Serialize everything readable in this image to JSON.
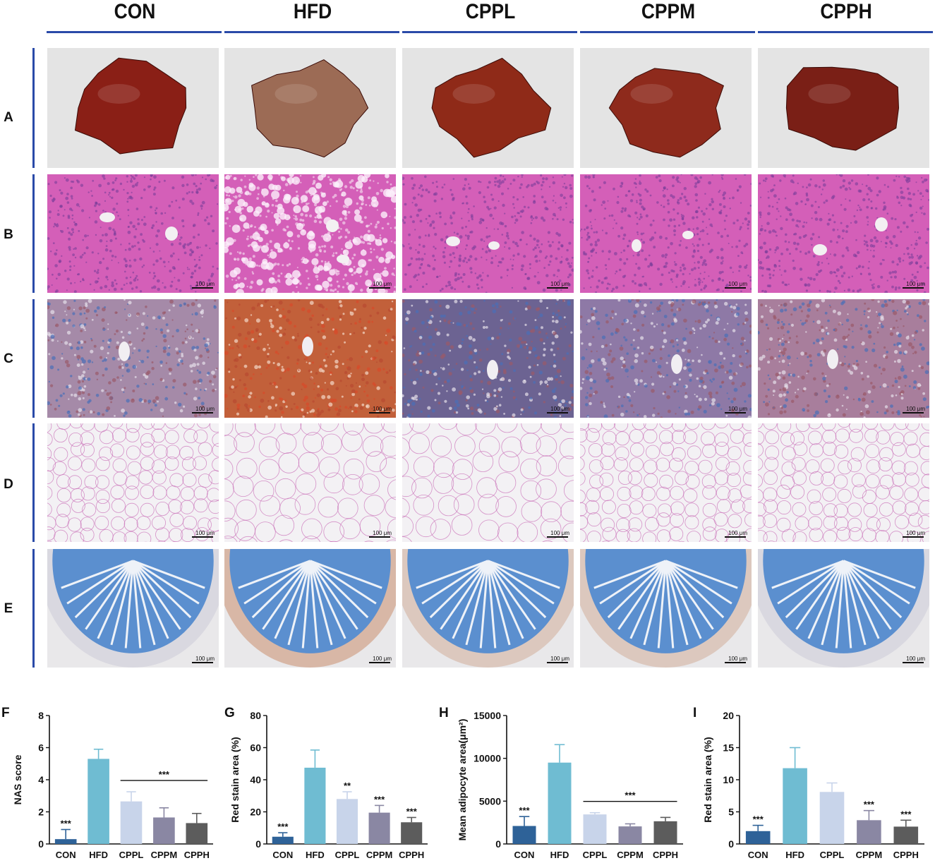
{
  "groups": [
    "CON",
    "HFD",
    "CPPL",
    "CPPM",
    "CPPH"
  ],
  "rows": [
    "A",
    "B",
    "C",
    "D",
    "E"
  ],
  "scale_label": "100 μm",
  "colors": {
    "header_rule": "#2a4aa8",
    "bar_colors": [
      "#2e6298",
      "#6fbcd2",
      "#c8d4ea",
      "#8a87a3",
      "#5c5c5c"
    ],
    "liver_gross": [
      "#8a1f16",
      "#9c6b55",
      "#8f2a18",
      "#8e2a1c",
      "#7a1f16"
    ],
    "he_stain": "#d45fb8",
    "oil_red_bg": [
      "#a58aa8",
      "#c2603a",
      "#6c6392",
      "#8e79a6",
      "#a87e9c"
    ]
  },
  "chart_data": [
    {
      "type": "bar",
      "panel": "F",
      "categories": [
        "CON",
        "HFD",
        "CPPL",
        "CPPM",
        "CPPH"
      ],
      "values": [
        0.3,
        5.3,
        2.65,
        1.65,
        1.3
      ],
      "errors": [
        0.6,
        0.6,
        0.6,
        0.6,
        0.6
      ],
      "ylabel": "NAS score",
      "ylim": [
        0,
        8
      ],
      "yticks": [
        0,
        2,
        4,
        6,
        8
      ],
      "annotations": [
        {
          "text": "***",
          "category": "CON"
        },
        {
          "text": "***",
          "span": [
            "CPPL",
            "CPPH"
          ]
        }
      ]
    },
    {
      "type": "bar",
      "panel": "G",
      "categories": [
        "CON",
        "HFD",
        "CPPL",
        "CPPM",
        "CPPH"
      ],
      "values": [
        4.5,
        47.5,
        28,
        19.5,
        13.5
      ],
      "errors": [
        2.5,
        11,
        4.5,
        4.5,
        3
      ],
      "ylabel": "Red stain area (%)",
      "ylim": [
        0,
        80
      ],
      "yticks": [
        0,
        20,
        40,
        60,
        80
      ],
      "annotations": [
        {
          "text": "***",
          "category": "CON"
        },
        {
          "text": "**",
          "category": "CPPL"
        },
        {
          "text": "***",
          "category": "CPPM"
        },
        {
          "text": "***",
          "category": "CPPH"
        }
      ]
    },
    {
      "type": "bar",
      "panel": "H",
      "categories": [
        "CON",
        "HFD",
        "CPPL",
        "CPPM",
        "CPPH"
      ],
      "values": [
        2100,
        9500,
        3450,
        2050,
        2650
      ],
      "errors": [
        1100,
        2100,
        200,
        300,
        450
      ],
      "ylabel": "Mean adipocyte area(μm²)",
      "ylim": [
        0,
        15000
      ],
      "yticks": [
        0,
        5000,
        10000,
        15000
      ],
      "annotations": [
        {
          "text": "***",
          "category": "CON"
        },
        {
          "text": "***",
          "span": [
            "CPPL",
            "CPPH"
          ]
        }
      ]
    },
    {
      "type": "bar",
      "panel": "I",
      "categories": [
        "CON",
        "HFD",
        "CPPL",
        "CPPM",
        "CPPH"
      ],
      "values": [
        2,
        11.8,
        8.1,
        3.7,
        2.7
      ],
      "errors": [
        0.9,
        3.2,
        1.4,
        1.5,
        1
      ],
      "ylabel": "Red stain area (%)",
      "ylim": [
        0,
        20
      ],
      "yticks": [
        0,
        5,
        10,
        15,
        20
      ],
      "annotations": [
        {
          "text": "***",
          "category": "CON"
        },
        {
          "text": "***",
          "category": "CPPM"
        },
        {
          "text": "***",
          "category": "CPPH"
        }
      ]
    }
  ]
}
